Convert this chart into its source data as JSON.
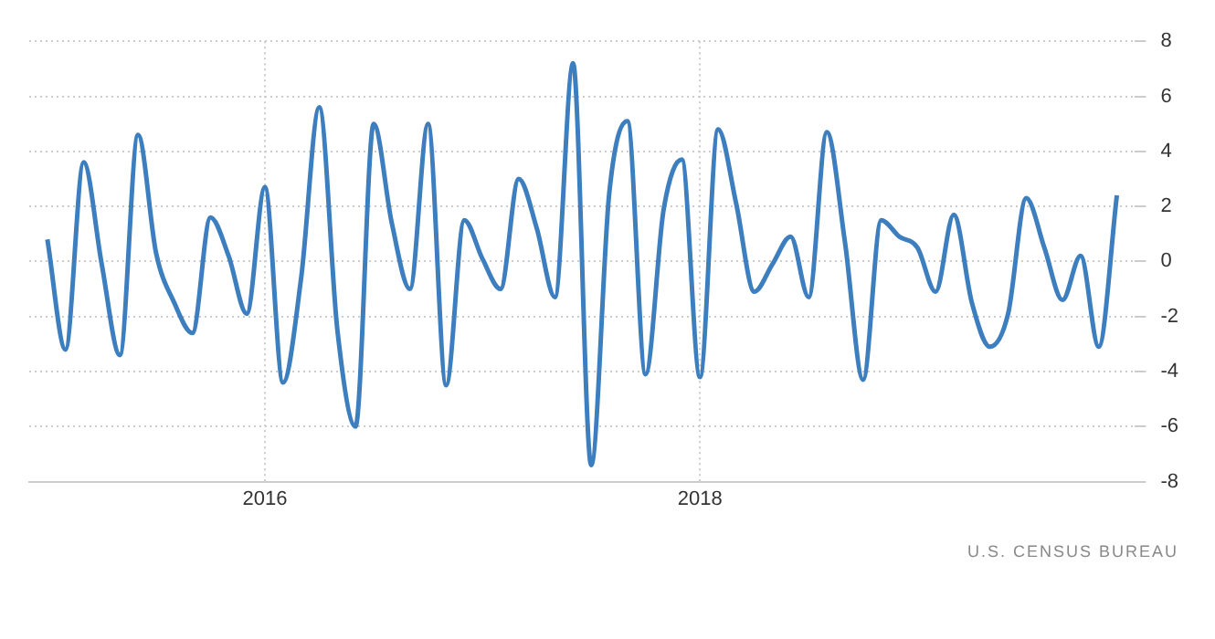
{
  "chart_data": {
    "type": "line",
    "x": [
      "2015-01",
      "2015-02",
      "2015-03",
      "2015-04",
      "2015-05",
      "2015-06",
      "2015-07",
      "2015-08",
      "2015-09",
      "2015-10",
      "2015-11",
      "2015-12",
      "2016-01",
      "2016-02",
      "2016-03",
      "2016-04",
      "2016-05",
      "2016-06",
      "2016-07",
      "2016-08",
      "2016-09",
      "2016-10",
      "2016-11",
      "2016-12",
      "2017-01",
      "2017-02",
      "2017-03",
      "2017-04",
      "2017-05",
      "2017-06",
      "2017-07",
      "2017-08",
      "2017-09",
      "2017-10",
      "2017-11",
      "2017-12",
      "2018-01",
      "2018-02",
      "2018-03",
      "2018-04",
      "2018-05",
      "2018-06",
      "2018-07",
      "2018-08",
      "2018-09",
      "2018-10",
      "2018-11",
      "2018-12",
      "2019-01",
      "2019-02",
      "2019-03",
      "2019-04",
      "2019-05",
      "2019-06",
      "2019-07",
      "2019-08",
      "2019-09",
      "2019-10",
      "2019-11",
      "2019-12"
    ],
    "series": [
      {
        "color": "#3d7ebf",
        "values": [
          0.8,
          -3.2,
          3.6,
          -0.1,
          -3.4,
          4.6,
          0.3,
          -1.5,
          -2.6,
          1.6,
          0.2,
          -1.9,
          2.7,
          -4.4,
          -0.6,
          5.6,
          -2.5,
          -6.0,
          5.0,
          1.4,
          -1.0,
          5.0,
          -4.5,
          1.5,
          0.1,
          -1.0,
          3.0,
          1.2,
          -1.3,
          7.2,
          -7.4,
          2.5,
          5.1,
          -4.1,
          1.9,
          3.7,
          -4.2,
          4.8,
          2.1,
          -1.1,
          -0.1,
          0.9,
          -1.3,
          4.7,
          0.7,
          -4.3,
          1.5,
          0.9,
          0.5,
          -1.1,
          1.7,
          -1.5,
          -3.1,
          -1.9,
          2.3,
          0.5,
          -1.4,
          0.2,
          -3.1,
          2.4
        ]
      }
    ],
    "xlim": [
      "2014-12",
      "2020-01"
    ],
    "xticks": [
      "2016",
      "2018"
    ],
    "ylim": [
      -8,
      8
    ],
    "yticks": [
      -8,
      -6,
      -4,
      -2,
      0,
      2,
      4,
      6,
      8
    ],
    "grid": true,
    "legend": false,
    "marker": "none",
    "line_style": "solid",
    "annotations": [
      "U.S. CENSUS BUREAU"
    ]
  }
}
